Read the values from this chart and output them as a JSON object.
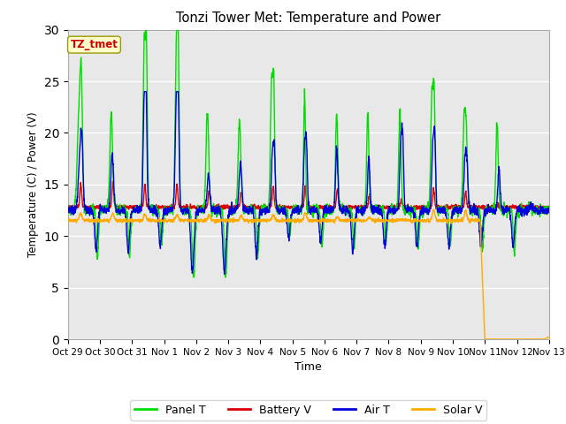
{
  "title": "Tonzi Tower Met: Temperature and Power",
  "xlabel": "Time",
  "ylabel": "Temperature (C) / Power (V)",
  "ylim": [
    0,
    30
  ],
  "annotation_text": "TZ_tmet",
  "annotation_bg": "#ffffcc",
  "annotation_fg": "#cc0000",
  "annotation_edge": "#999900",
  "legend_entries": [
    "Panel T",
    "Battery V",
    "Air T",
    "Solar V"
  ],
  "line_colors": [
    "#00dd00",
    "#dd0000",
    "#0000dd",
    "#ffaa00"
  ],
  "tick_labels": [
    "Oct 29",
    "Oct 30",
    "Oct 31",
    "Nov 1",
    "Nov 2",
    "Nov 3",
    "Nov 4",
    "Nov 5",
    "Nov 6",
    "Nov 7",
    "Nov 8",
    "Nov 9",
    "Nov 10",
    "Nov 11",
    "Nov 12",
    "Nov 13"
  ],
  "num_days": 15,
  "fig_bg": "#ffffff",
  "plot_bg": "#e8e8e8",
  "grid_color": "#ffffff"
}
